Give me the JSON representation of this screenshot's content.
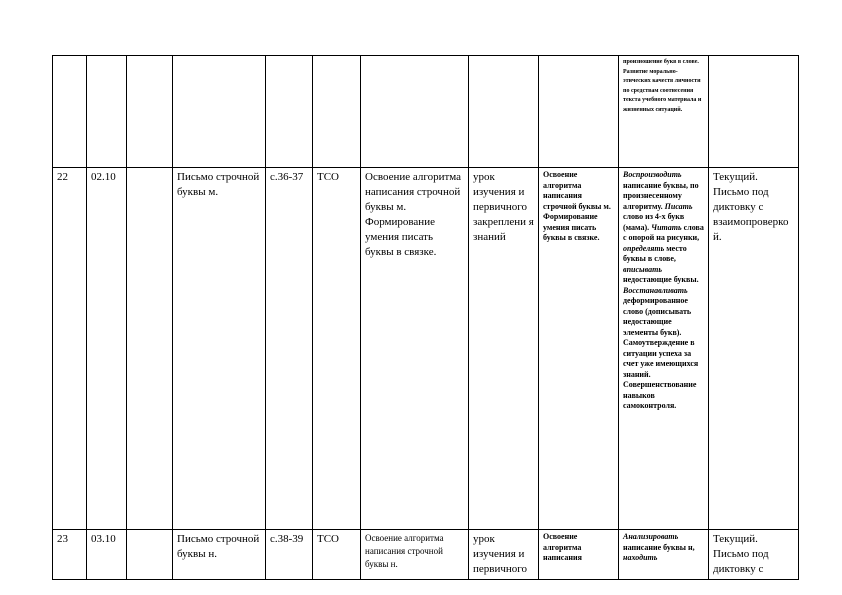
{
  "rows": [
    {
      "num": "",
      "date": "",
      "fact": "",
      "topic": "",
      "pages": "",
      "equip": "",
      "content": "",
      "type": "",
      "goals": "",
      "activities_text": "произношение букв в слове. Развитие морально-этических качеств личности по средствам соотнесения текста учебного материала и жизненных ситуаций.",
      "control": ""
    },
    {
      "num": "22",
      "date": "02.10",
      "fact": "",
      "topic": "Письмо строчной буквы м.",
      "pages": "с.36-37",
      "equip": "ТСО",
      "content": "Освоение алгоритма написания строчной буквы м. Формирование умения писать буквы в связке.",
      "type": "урок изучения и первичного закреплени я знаний",
      "goals": "Освоение алгоритма написания строчной буквы м. Формирование умения писать буквы в связке.",
      "act1_i": "Воспроизводить",
      "act1": " написание буквы, по произнесенному алгоритму. ",
      "act2_i": "Писать",
      "act2": " слово из 4-х букв (мама). ",
      "act3_i": "Читать",
      "act3": " слова с опорой на рисунки, ",
      "act4_i": "определять",
      "act4": " место буквы в слове, ",
      "act5_i": "вписывать",
      "act5": " недостающие буквы. ",
      "act6_i": "Восстанавливать",
      "act6": " деформированное слово (дописывать недостающие элементы букв). Самоутверждение в ситуации успеха за счет уже имеющихся знаний. Совершенствование навыков самоконтроля.",
      "control": "Текущий. Письмо под диктовку с взаимопроверкой."
    },
    {
      "num": "23",
      "date": "03.10",
      "fact": "",
      "topic": "Письмо строчной буквы н.",
      "pages": "с.38-39",
      "equip": "ТСО",
      "content": "Освоение алгоритма написания строчной буквы н.",
      "type": "урок изучения и первичного",
      "goals": "Освоение алгоритма написания",
      "act1_i": "Анализировать",
      "act1": " написание буквы н, ",
      "act2_i": "находить",
      "act2": "",
      "control": "Текущий. Письмо под диктовку с"
    }
  ]
}
